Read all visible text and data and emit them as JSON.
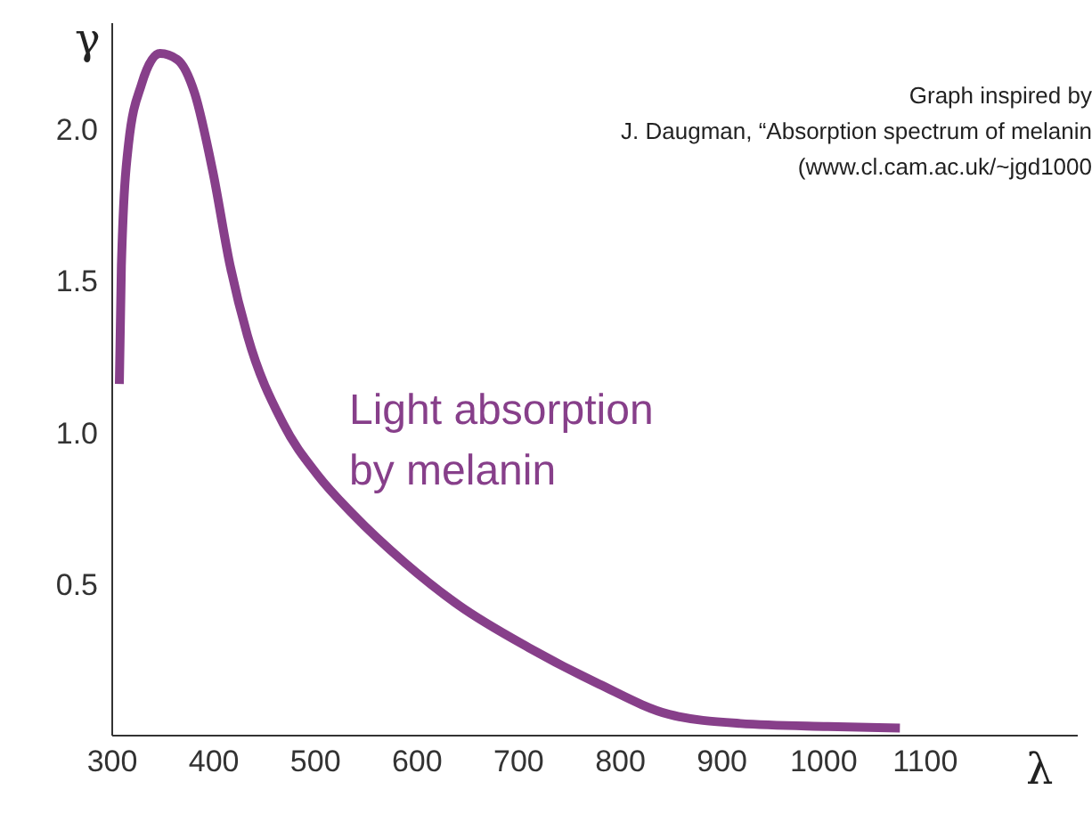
{
  "chart_data": {
    "type": "line",
    "xlabel": "λ",
    "ylabel": "γ",
    "annotations": [
      "Light absorption\nby melanin",
      "Graph inspired by\nJ. Daugman, “Absorption spectrum of melanin\n(www.cl.cam.ac.uk/~jgd1000"
    ],
    "x": [
      307,
      309,
      316,
      329,
      347,
      364,
      381,
      399,
      416,
      433,
      468,
      502,
      537,
      588,
      641,
      710,
      779,
      848,
      918,
      1004,
      1075
    ],
    "series": [
      {
        "color": "#873f8a",
        "values": [
          1.16,
          1.55,
          1.95,
          2.15,
          2.25,
          2.23,
          2.12,
          1.86,
          1.55,
          1.32,
          1.03,
          0.86,
          0.73,
          0.57,
          0.43,
          0.29,
          0.17,
          0.07,
          0.04,
          0.03,
          0.025
        ]
      }
    ],
    "xlim": [
      300,
      1250
    ],
    "xticks": [
      300,
      400,
      500,
      600,
      700,
      800,
      900,
      1000,
      1100
    ],
    "ylim": [
      0,
      2.35
    ],
    "yticks": [
      0.5,
      {
        "value": 1,
        "label": "1.0"
      },
      1.5,
      {
        "value": 2,
        "label": "2.0"
      }
    ],
    "marker": "none",
    "line_style": "solid"
  }
}
